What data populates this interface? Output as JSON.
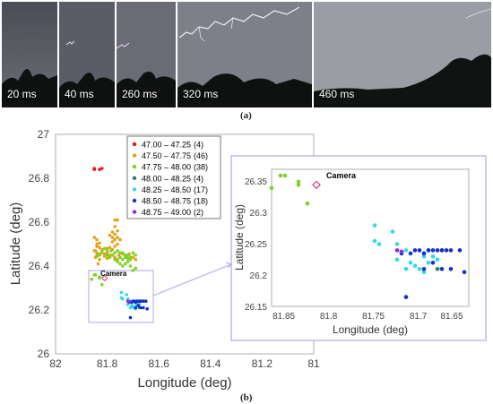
{
  "panel_a": {
    "frames": [
      {
        "label": "20 ms"
      },
      {
        "label": "40 ms"
      },
      {
        "label": "260 ms"
      },
      {
        "label": "320 ms"
      },
      {
        "label": "460 ms"
      }
    ],
    "caption": "(a)"
  },
  "panel_b": {
    "caption": "(b)",
    "camera_label": "Camera"
  },
  "colors": {
    "47.00 – 47.25": "#e8161b",
    "47.50 – 47.75": "#e4a21b",
    "47.75 – 48.00": "#7ed321",
    "48.00 – 48.25": "#2e7d5b",
    "48.25 – 48.50": "#33d9e8",
    "48.50 – 48.75": "#1530cc",
    "48.75 – 49.00": "#8b2be2",
    "camera": "#d63384",
    "inset_border": "#a9a9e8"
  },
  "chart_data": [
    {
      "type": "scatter",
      "title": "",
      "xlabel": "Longitude (deg)",
      "ylabel": "Latitude (deg)",
      "xlim": [
        82,
        81
      ],
      "ylim": [
        26,
        27
      ],
      "x_reversed": true,
      "xticks": [
        "82",
        "81.8",
        "81.6",
        "81.4",
        "81.2",
        "81"
      ],
      "yticks": [
        "26",
        "26.2",
        "26.4",
        "26.6",
        "26.8",
        "27"
      ],
      "legend": [
        {
          "label": "47.00 – 47.25",
          "count": "(4)"
        },
        {
          "label": "47.50 – 47.75",
          "count": "(46)"
        },
        {
          "label": "47.75 – 48.00",
          "count": "(38)"
        },
        {
          "label": "48.00 – 48.25",
          "count": "(4)"
        },
        {
          "label": "48.25 – 48.50",
          "count": "(17)"
        },
        {
          "label": "48.50 – 48.75",
          "count": "(18)"
        },
        {
          "label": "48.75 – 49.00",
          "count": "(2)"
        }
      ],
      "camera": {
        "x": 81.81,
        "y": 26.345
      },
      "series": [
        {
          "name": "47.00 – 47.25",
          "points": [
            [
              81.85,
              26.845
            ],
            [
              81.82,
              26.845
            ],
            [
              81.85,
              26.84
            ],
            [
              81.83,
              26.84
            ]
          ]
        },
        {
          "name": "47.50 – 47.75",
          "points": [
            [
              81.77,
              26.61
            ],
            [
              81.76,
              26.61
            ],
            [
              81.77,
              26.58
            ],
            [
              81.76,
              26.56
            ],
            [
              81.78,
              26.555
            ],
            [
              81.77,
              26.545
            ],
            [
              81.79,
              26.54
            ],
            [
              81.78,
              26.53
            ],
            [
              81.76,
              26.53
            ],
            [
              81.77,
              26.52
            ],
            [
              81.75,
              26.52
            ],
            [
              81.78,
              26.51
            ],
            [
              81.76,
              26.5
            ],
            [
              81.77,
              26.49
            ],
            [
              81.79,
              26.485
            ],
            [
              81.8,
              26.48
            ],
            [
              81.78,
              26.475
            ],
            [
              81.82,
              26.47
            ],
            [
              81.8,
              26.46
            ],
            [
              81.81,
              26.455
            ],
            [
              81.79,
              26.45
            ],
            [
              81.83,
              26.45
            ],
            [
              81.84,
              26.49
            ],
            [
              81.83,
              26.505
            ],
            [
              81.84,
              26.52
            ],
            [
              81.85,
              26.53
            ],
            [
              81.84,
              26.5
            ],
            [
              81.83,
              26.485
            ],
            [
              81.845,
              26.47
            ],
            [
              81.85,
              26.47
            ],
            [
              81.82,
              26.475
            ],
            [
              81.84,
              26.46
            ],
            [
              81.83,
              26.43
            ],
            [
              81.835,
              26.41
            ],
            [
              81.84,
              26.45
            ],
            [
              81.845,
              26.44
            ],
            [
              81.81,
              26.445
            ],
            [
              81.8,
              26.435
            ],
            [
              81.77,
              26.44
            ],
            [
              81.76,
              26.43
            ],
            [
              81.755,
              26.45
            ],
            [
              81.74,
              26.455
            ],
            [
              81.725,
              26.44
            ],
            [
              81.715,
              26.455
            ],
            [
              81.7,
              26.44
            ],
            [
              81.69,
              26.43
            ]
          ]
        },
        {
          "name": "47.75 – 48.00",
          "points": [
            [
              81.85,
              26.36
            ],
            [
              81.845,
              26.36
            ],
            [
              81.83,
              26.35
            ],
            [
              81.83,
              26.345
            ],
            [
              81.86,
              26.34
            ],
            [
              81.82,
              26.315
            ],
            [
              81.8,
              26.45
            ],
            [
              81.78,
              26.45
            ],
            [
              81.76,
              26.47
            ],
            [
              81.75,
              26.46
            ],
            [
              81.74,
              26.46
            ],
            [
              81.73,
              26.45
            ],
            [
              81.72,
              26.45
            ],
            [
              81.71,
              26.44
            ],
            [
              81.7,
              26.46
            ],
            [
              81.69,
              26.45
            ],
            [
              81.77,
              26.43
            ],
            [
              81.76,
              26.42
            ],
            [
              81.75,
              26.41
            ],
            [
              81.74,
              26.4
            ],
            [
              81.73,
              26.41
            ],
            [
              81.72,
              26.42
            ],
            [
              81.71,
              26.43
            ],
            [
              81.8,
              26.47
            ],
            [
              81.81,
              26.48
            ],
            [
              81.82,
              26.46
            ],
            [
              81.84,
              26.445
            ],
            [
              81.83,
              26.455
            ],
            [
              81.79,
              26.44
            ],
            [
              81.785,
              26.47
            ],
            [
              81.77,
              26.46
            ],
            [
              81.75,
              26.44
            ],
            [
              81.74,
              26.43
            ],
            [
              81.73,
              26.44
            ],
            [
              81.72,
              26.435
            ],
            [
              81.7,
              26.38
            ],
            [
              81.69,
              26.39
            ],
            [
              81.71,
              26.4
            ]
          ]
        },
        {
          "name": "48.00 – 48.25",
          "points": [
            [
              81.69,
              26.235
            ],
            [
              81.685,
              26.24
            ],
            [
              81.675,
              26.21
            ],
            [
              81.67,
              26.24
            ]
          ]
        },
        {
          "name": "48.25 – 48.50",
          "points": [
            [
              81.745,
              26.28
            ],
            [
              81.745,
              26.255
            ],
            [
              81.74,
              26.25
            ],
            [
              81.725,
              26.27
            ],
            [
              81.72,
              26.25
            ],
            [
              81.715,
              26.235
            ],
            [
              81.71,
              26.24
            ],
            [
              81.705,
              26.22
            ],
            [
              81.7,
              26.215
            ],
            [
              81.695,
              26.21
            ],
            [
              81.69,
              26.205
            ],
            [
              81.69,
              26.23
            ],
            [
              81.685,
              26.22
            ],
            [
              81.68,
              26.23
            ],
            [
              81.675,
              26.225
            ],
            [
              81.72,
              26.225
            ],
            [
              81.71,
              26.21
            ]
          ]
        },
        {
          "name": "48.50 – 48.75",
          "points": [
            [
              81.7,
              26.24
            ],
            [
              81.695,
              26.24
            ],
            [
              81.69,
              26.235
            ],
            [
              81.685,
              26.24
            ],
            [
              81.68,
              26.24
            ],
            [
              81.675,
              26.24
            ],
            [
              81.67,
              26.24
            ],
            [
              81.665,
              26.24
            ],
            [
              81.66,
              26.24
            ],
            [
              81.65,
              26.24
            ],
            [
              81.69,
              26.21
            ],
            [
              81.68,
              26.22
            ],
            [
              81.67,
              26.21
            ],
            [
              81.66,
              26.21
            ],
            [
              81.645,
              26.205
            ],
            [
              81.71,
              26.165
            ],
            [
              81.715,
              26.235
            ],
            [
              81.705,
              26.235
            ]
          ]
        },
        {
          "name": "48.75 – 49.00",
          "points": [
            [
              81.72,
              26.24
            ],
            [
              81.715,
              26.238
            ]
          ]
        }
      ]
    },
    {
      "type": "scatter",
      "title": "",
      "xlabel": "Longitude (deg)",
      "ylabel": "Latitude (deg)",
      "xlim": [
        81.86,
        81.64
      ],
      "ylim": [
        26.15,
        26.37
      ],
      "x_reversed": true,
      "xticks": [
        "81.85",
        "81.8",
        "81.75",
        "81.7",
        "81.65"
      ],
      "yticks": [
        "26.15",
        "26.2",
        "26.25",
        "26.3",
        "26.35"
      ]
    }
  ]
}
